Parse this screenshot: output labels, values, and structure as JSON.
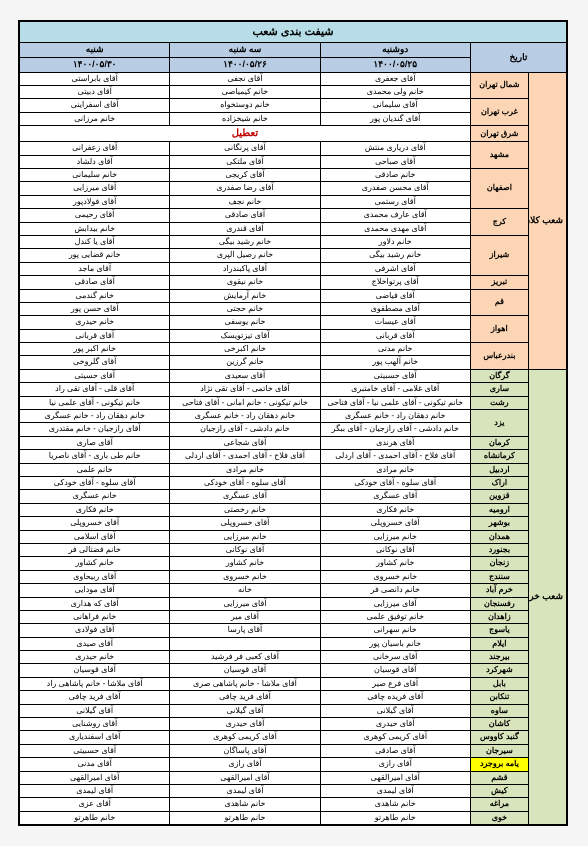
{
  "title": "شیفت بندی شعب",
  "header": {
    "date_label": "تاریخ",
    "days": [
      {
        "name": "دوشنبه",
        "date": "۱۴۰۰/۰۵/۲۵"
      },
      {
        "name": "سه شنبه",
        "date": "۱۴۰۰/۰۵/۲۶"
      },
      {
        "name": "شنبه",
        "date": "۱۴۰۰/۰۵/۳۰"
      }
    ]
  },
  "closed_label": "تعطیل",
  "groups": [
    {
      "name": "شعب کلان",
      "class": "kalan",
      "cities": [
        {
          "name": "شمال تهران",
          "rows": [
            [
              "آقای جعفری",
              "آقای نجفی",
              "آقای بابراستی"
            ],
            [
              "خانم ولی محمدی",
              "خانم کیمیاصی",
              "آقای دبیتی"
            ]
          ]
        },
        {
          "name": "غرب تهران",
          "rows": [
            [
              "آقای سلیمانی",
              "خانم دوستخواه",
              "آقای اسفراینی"
            ],
            [
              "آقای گندیان پور",
              "خانم شیخزاده",
              "خانم مرزانی"
            ]
          ]
        },
        {
          "name": "شرق تهران",
          "rows": [
            [
              "__CLOSED__",
              "__CLOSED__",
              "__CLOSED__"
            ]
          ]
        },
        {
          "name": "مشهد",
          "rows": [
            [
              "آقای دریاری منتش",
              "آقای پرنگانی",
              "آقای زعفرانی"
            ],
            [
              "آقای صباحی",
              "آقای ملتکی",
              "آقای دلشاد"
            ]
          ]
        },
        {
          "name": "اصفهان",
          "rows": [
            [
              "خانم صادقی",
              "آقای کریجی",
              "خانم سلیمانی"
            ],
            [
              "آقای محسن صفدری",
              "آقای رضا صفدری",
              "آقای میرزایی"
            ],
            [
              "آقای رستمی",
              "خانم نجف",
              "آقای فولادپور"
            ]
          ]
        },
        {
          "name": "کرج",
          "rows": [
            [
              "آقای عارف محمدی",
              "آقای صادقی",
              "آقای رحیمی"
            ],
            [
              "آقای مهدی محمدی",
              "آقای قندری",
              "خانم بیدابش"
            ]
          ]
        },
        {
          "name": "شیراز",
          "rows": [
            [
              "خانم دلاور",
              "خانم رشید بیگی",
              "آقای یا کندل"
            ],
            [
              "خانم رشید بیگی",
              "خانم رصیل الپری",
              "خانم قضایی پور"
            ],
            [
              "آقای اشرفی",
              "آقای پاکبندراد",
              "آقای ماجد"
            ]
          ]
        },
        {
          "name": "تبریز",
          "rows": [
            [
              "آقای پرتواخلاج",
              "خانم نیقوی",
              "آقای صادقی"
            ]
          ]
        },
        {
          "name": "قم",
          "rows": [
            [
              "آقای فیاضی",
              "خانم آرمایش",
              "خانم گندمی"
            ],
            [
              "آقای مصطفوی",
              "خانم حجتی",
              "آقای حسن پور"
            ]
          ]
        },
        {
          "name": "اهواز",
          "rows": [
            [
              "آقای عیسات",
              "خانم یوسفی",
              "خانم حیدری"
            ],
            [
              "آقای قربانی",
              "آقای تیزتویسک",
              "آقای قربانی"
            ]
          ]
        },
        {
          "name": "بندرعباس",
          "rows": [
            [
              "خانم مدتی",
              "خانم اکبرخی",
              "خانم اکبر پور"
            ],
            [
              "خانم آلهب پور",
              "خانم گرزین",
              "آقای گلروخی"
            ]
          ]
        }
      ]
    },
    {
      "name": "شعب خرد",
      "class": "khord",
      "cities": [
        {
          "name": "گرگان",
          "rows": [
            [
              "آقای حسبیتی",
              "آقای سعیدی",
              "آقای حسیتی"
            ]
          ]
        },
        {
          "name": "ساری",
          "rows": [
            [
              "آقای غلامی - آقای خامتبری",
              "آقای خاتمی - آقای تقی نژاد",
              "آقای قلی - آقای تقی راد"
            ]
          ]
        },
        {
          "name": "رشت",
          "rows": [
            [
              "خانم تیکونی - آقای علمی نیا - آقای فتاحی",
              "خانم تیکونی - خانم امانی - آقای فتاحی",
              "خانم تیکونی - آقای علمی نیا"
            ]
          ]
        },
        {
          "name": "یزد",
          "rows": [
            [
              "خانم دهقان راد - خانم عسگری",
              "خانم دهقان راد - خانم عسگری",
              "خانم دهقان راد - خانم عسگری"
            ],
            [
              "خانم دادشی - آقای رازجیان - آقای ببگر",
              "خانم دادشی - آقای رازجیان",
              "آقای رازجیان - خانم مقتدری"
            ]
          ]
        },
        {
          "name": "کرمان",
          "rows": [
            [
              "آقای هرندی",
              "آقای شجاعی",
              "آقای صاری"
            ]
          ]
        },
        {
          "name": "کرمانشاه",
          "rows": [
            [
              "آقای فلاح - آقای احمدی - آقای اردلی",
              "آقای فلاح - آقای احمدی - آقای اردلی",
              "خانم طی باری - آقای ناصریا"
            ]
          ]
        },
        {
          "name": "اردبیل",
          "rows": [
            [
              "خانم مرادی",
              "خانم مرادی",
              "خانم علمی"
            ]
          ]
        },
        {
          "name": "اراک",
          "rows": [
            [
              "آقای سلوه - آقای خودکی",
              "آقای سلوه - آقای خودکی",
              "آقای سلوه - آقای خودکی"
            ]
          ]
        },
        {
          "name": "قزوین",
          "rows": [
            [
              "آقای عسگری",
              "آقای عسگری",
              "خانم عسگری"
            ]
          ]
        },
        {
          "name": "ارومیه",
          "rows": [
            [
              "خانم فکاری",
              "خانم رخصتی",
              "خانم فکاری"
            ]
          ]
        },
        {
          "name": "بوشهر",
          "rows": [
            [
              "آقای خسروپلی",
              "آقای خسروپلی",
              "آقای خسروپلی"
            ]
          ]
        },
        {
          "name": "همدان",
          "rows": [
            [
              "خانم میرزایی",
              "خانم میرزایی",
              "آقای اسلامی"
            ]
          ]
        },
        {
          "name": "بجنورد",
          "rows": [
            [
              "آقای نوکانی",
              "آقای نوکانی",
              "خانم فضتالی فر"
            ]
          ]
        },
        {
          "name": "زنجان",
          "rows": [
            [
              "خانم کشاور",
              "خانم کشاور",
              "خانم کشاور"
            ]
          ]
        },
        {
          "name": "سنندج",
          "rows": [
            [
              "خانم خسروی",
              "خانم خسروی",
              "آقای ربیحاوی"
            ]
          ]
        },
        {
          "name": "خرم آباد",
          "rows": [
            [
              "خانم دانصی فر",
              "خانه",
              "آقای مودایی"
            ]
          ]
        },
        {
          "name": "رفسنجان",
          "rows": [
            [
              "آقای میرزایی",
              "آقای میرزایی",
              "آقای که هداری"
            ]
          ]
        },
        {
          "name": "زاهدان",
          "rows": [
            [
              "خانم توفیق علمی",
              "آقای میر",
              "خانم فراهانی"
            ]
          ]
        },
        {
          "name": "یاسوج",
          "rows": [
            [
              "خانم سهرانی",
              "آقای پارسا",
              "آقای فولادی"
            ]
          ]
        },
        {
          "name": "ایلام",
          "rows": [
            [
              "خانم باسیان پور",
              "",
              "آقای صیدی"
            ]
          ]
        },
        {
          "name": "بیرجند",
          "rows": [
            [
              "آقای سرخانی",
              "آقای کعبی فر فرشید",
              "خانم حیدری"
            ]
          ]
        },
        {
          "name": "شهرکرد",
          "rows": [
            [
              "آقای قوسیان",
              "آقای قوسیان",
              "آقای قوسیان"
            ]
          ]
        },
        {
          "name": "بابل",
          "rows": [
            [
              "آقای فرع صیر",
              "آقای ملاشا - خانم پاشاهی صری",
              "آقای ملاشا - خانم پاشاهی راد"
            ]
          ]
        },
        {
          "name": "تنکابن",
          "rows": [
            [
              "آقای فریده چافی",
              "آقای فرید چافی",
              "آقای فرید چافی"
            ]
          ]
        },
        {
          "name": "ساوه",
          "rows": [
            [
              "آقای گیلانی",
              "آقای گیلانی",
              "آقای گیلانی"
            ]
          ]
        },
        {
          "name": "کاشان",
          "rows": [
            [
              "آقای حیدری",
              "آقای حیدری",
              "آقای روشنایی"
            ]
          ]
        },
        {
          "name": "گنبد کاووس",
          "rows": [
            [
              "آقای کریمی کوهری",
              "آقای کریمی کوهری",
              "آقای اسفندیاری"
            ]
          ]
        },
        {
          "name": "سیرجان",
          "rows": [
            [
              "آقای صادقی",
              "آقای پاساگان",
              "آقای حسبیتی"
            ]
          ]
        },
        {
          "name": "یامه بروجرد",
          "hi": true,
          "rows": [
            [
              "آقای رازی",
              "آقای رازی",
              "آقای مدنی"
            ]
          ]
        },
        {
          "name": "قشم",
          "rows": [
            [
              "آقای امیرالقهی",
              "آقای امیرالقهی",
              "آقای امیرالقهی"
            ]
          ]
        },
        {
          "name": "کیش",
          "rows": [
            [
              "آقای لیمدی",
              "آقای لیمدی",
              "آقای لیمدی"
            ]
          ]
        },
        {
          "name": "مراغه",
          "rows": [
            [
              "خانم شاهدی",
              "خانم شاهدی",
              "آقای عزی"
            ]
          ]
        },
        {
          "name": "خوی",
          "rows": [
            [
              "خانم طاهرتو",
              "خانم طاهرتو",
              "خانم طاهرتو"
            ]
          ]
        }
      ]
    }
  ],
  "colors": {
    "title_bg": "#b7dee8",
    "header_bg": "#b8cce4",
    "kalan_bg": "#fcd5b4",
    "khord_bg": "#d8e4bc",
    "highlight_bg": "#ffff00",
    "closed_color": "#c00000",
    "border": "#000000"
  }
}
